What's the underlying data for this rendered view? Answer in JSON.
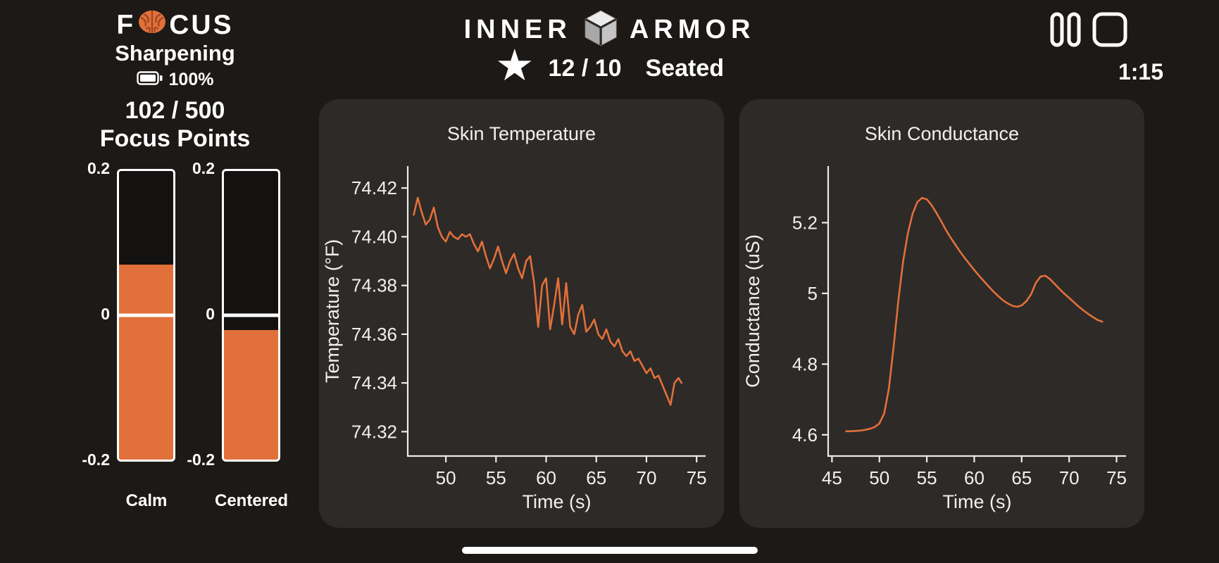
{
  "app": {
    "background": "#1c1917",
    "panel_color": "#2d2a28",
    "accent_orange": "#e2703a",
    "text_color": "#ffffff"
  },
  "icons": {
    "star": "★"
  },
  "header_left": {
    "logo_prefix": "F",
    "logo_suffix": "CUS",
    "mode": "Sharpening",
    "battery_percent": "100%",
    "score": "102 / 500",
    "score_label": "Focus Points"
  },
  "header_center": {
    "brand_left": "INNER",
    "brand_right": "ARMOR",
    "star_value": "12 / 10",
    "posture": "Seated"
  },
  "header_right": {
    "timer": "1:15"
  },
  "gauges": [
    {
      "label": "Calm",
      "value": 0.07,
      "min": -0.2,
      "max": 0.2,
      "ticks": {
        "top": "0.2",
        "mid": "0",
        "bottom": "-0.2"
      }
    },
    {
      "label": "Centered",
      "value": -0.02,
      "min": -0.2,
      "max": 0.2,
      "ticks": {
        "top": "0.2",
        "mid": "0",
        "bottom": "-0.2"
      }
    }
  ],
  "chart_data": [
    {
      "type": "line",
      "title": "Skin Temperature",
      "xlabel": "Time (s)",
      "ylabel": "Temperature (°F)",
      "xlim": [
        46.2,
        75.9
      ],
      "ylim": [
        74.31,
        74.429
      ],
      "xticks": [
        50,
        55,
        60,
        65,
        70,
        75
      ],
      "yticks": [
        74.32,
        74.34,
        74.36,
        74.38,
        74.4,
        74.42
      ],
      "ytick_decimals": 2,
      "color": "#e2703a",
      "x": [
        46.8,
        47.2,
        47.6,
        48,
        48.4,
        48.8,
        49.2,
        49.6,
        50,
        50.4,
        50.8,
        51.2,
        51.6,
        52,
        52.4,
        52.8,
        53.2,
        53.6,
        54,
        54.4,
        54.8,
        55.2,
        55.6,
        56,
        56.4,
        56.8,
        57.2,
        57.6,
        58,
        58.4,
        58.8,
        59.2,
        59.6,
        60,
        60.4,
        60.8,
        61.2,
        61.6,
        62,
        62.4,
        62.8,
        63.2,
        63.6,
        64,
        64.4,
        64.8,
        65.2,
        65.6,
        66,
        66.4,
        66.8,
        67.2,
        67.6,
        68,
        68.4,
        68.8,
        69.2,
        69.6,
        70,
        70.4,
        70.8,
        71.2,
        71.6,
        72,
        72.4,
        72.8,
        73.2,
        73.5
      ],
      "y": [
        74.409,
        74.416,
        74.41,
        74.405,
        74.407,
        74.412,
        74.404,
        74.4,
        74.398,
        74.402,
        74.4,
        74.399,
        74.401,
        74.4,
        74.401,
        74.397,
        74.394,
        74.398,
        74.392,
        74.387,
        74.391,
        74.396,
        74.39,
        74.385,
        74.39,
        74.393,
        74.387,
        74.383,
        74.39,
        74.392,
        74.381,
        74.363,
        74.38,
        74.383,
        74.362,
        74.372,
        74.383,
        74.364,
        74.381,
        74.363,
        74.36,
        74.368,
        74.372,
        74.361,
        74.363,
        74.366,
        74.36,
        74.358,
        74.362,
        74.357,
        74.355,
        74.358,
        74.353,
        74.351,
        74.353,
        74.349,
        74.35,
        74.347,
        74.344,
        74.346,
        74.342,
        74.343,
        74.339,
        74.335,
        74.331,
        74.34,
        74.342,
        74.34
      ]
    },
    {
      "type": "line",
      "title": "Skin Conductance",
      "xlabel": "Time (s)",
      "ylabel": "Conductance (uS)",
      "xlim": [
        44.6,
        76.0
      ],
      "ylim": [
        4.54,
        5.36
      ],
      "xticks": [
        45,
        50,
        55,
        60,
        65,
        70,
        75
      ],
      "yticks": [
        4.6,
        4.8,
        5,
        5.2
      ],
      "color": "#e2703a",
      "x": [
        46.5,
        47,
        47.5,
        48,
        48.5,
        49,
        49.5,
        50,
        50.5,
        51,
        51.5,
        52,
        52.5,
        53,
        53.5,
        54,
        54.5,
        55,
        55.5,
        56,
        56.5,
        57,
        57.5,
        58,
        58.5,
        59,
        59.5,
        60,
        60.5,
        61,
        61.5,
        62,
        62.5,
        63,
        63.5,
        64,
        64.5,
        65,
        65.5,
        66,
        66.5,
        67,
        67.5,
        68,
        68.5,
        69,
        69.5,
        70,
        70.5,
        71,
        71.5,
        72,
        72.5,
        73,
        73.5
      ],
      "y": [
        4.61,
        4.61,
        4.611,
        4.612,
        4.614,
        4.617,
        4.622,
        4.632,
        4.66,
        4.73,
        4.85,
        4.98,
        5.09,
        5.17,
        5.225,
        5.258,
        5.27,
        5.266,
        5.25,
        5.228,
        5.205,
        5.18,
        5.158,
        5.138,
        5.118,
        5.1,
        5.083,
        5.066,
        5.05,
        5.035,
        5.02,
        5.006,
        4.993,
        4.981,
        4.972,
        4.965,
        4.962,
        4.966,
        4.978,
        4.998,
        5.03,
        5.048,
        5.05,
        5.04,
        5.026,
        5.012,
        4.999,
        4.987,
        4.975,
        4.963,
        4.952,
        4.942,
        4.933,
        4.925,
        4.92
      ]
    }
  ]
}
